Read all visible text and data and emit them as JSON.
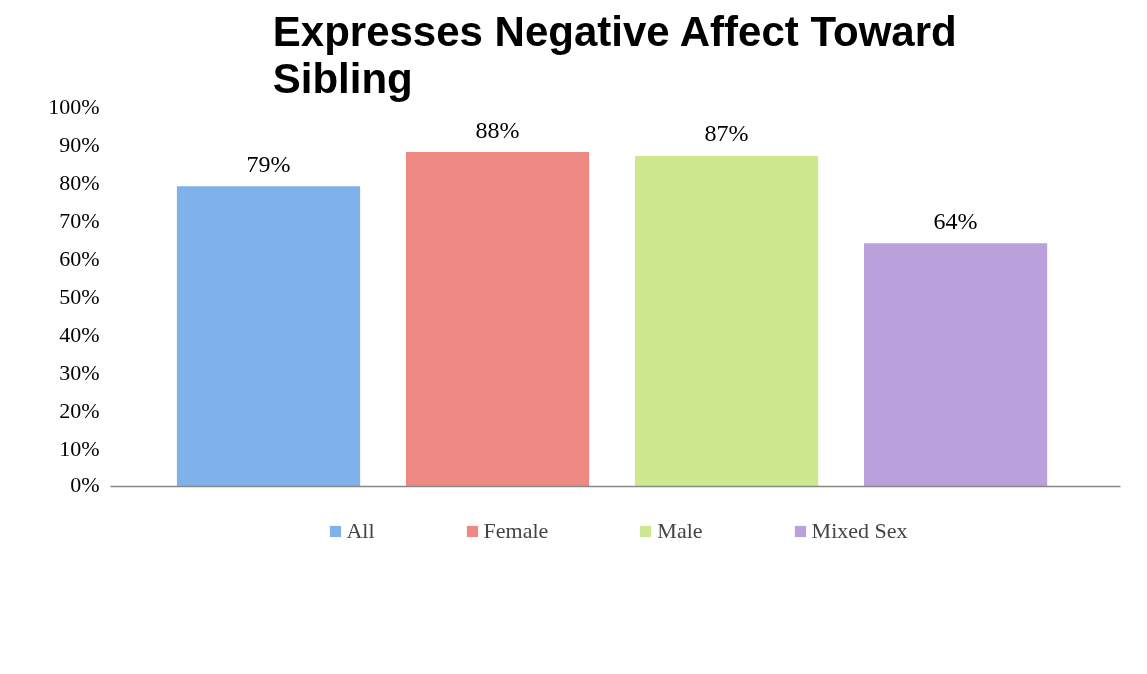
{
  "chart_data": {
    "type": "bar",
    "title": "Expresses Negative Affect Toward Sibling",
    "categories": [
      null
    ],
    "series": [
      {
        "name": "All",
        "color": "#7fb1ea",
        "values": [
          79
        ],
        "value_labels": [
          "79%"
        ]
      },
      {
        "name": "Female",
        "color": "#ee8882",
        "values": [
          88
        ],
        "value_labels": [
          "88%"
        ]
      },
      {
        "name": "Male",
        "color": "#cde88f",
        "values": [
          87
        ],
        "value_labels": [
          "87%"
        ]
      },
      {
        "name": "Mixed Sex",
        "color": "#baa1dc",
        "values": [
          64
        ],
        "value_labels": [
          "64%"
        ]
      }
    ],
    "ylim": [
      0,
      100
    ],
    "yticks": [
      {
        "value": 0,
        "label": "0%"
      },
      {
        "value": 10,
        "label": "10%"
      },
      {
        "value": 20,
        "label": "20%"
      },
      {
        "value": 30,
        "label": "30%"
      },
      {
        "value": 40,
        "label": "40%"
      },
      {
        "value": 50,
        "label": "50%"
      },
      {
        "value": 60,
        "label": "60%"
      },
      {
        "value": 70,
        "label": "70%"
      },
      {
        "value": 80,
        "label": "80%"
      },
      {
        "value": 90,
        "label": "90%"
      },
      {
        "value": 100,
        "label": "100%"
      }
    ],
    "grid": false,
    "legend": "bottom"
  }
}
